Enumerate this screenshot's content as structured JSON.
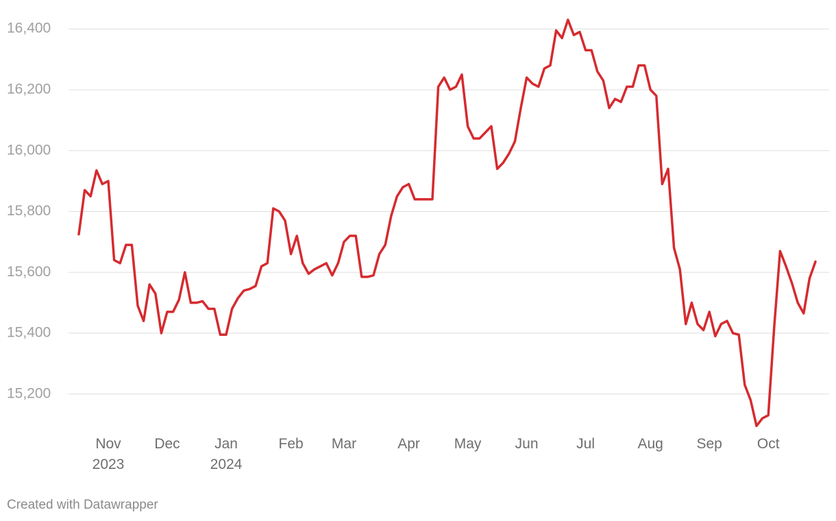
{
  "chart_data": {
    "type": "line",
    "credit": "Created with Datawrapper",
    "categories": [
      null,
      null,
      null,
      null,
      null,
      "Nov\n2023",
      null,
      null,
      null,
      null,
      null,
      null,
      null,
      null,
      null,
      "Dec",
      null,
      null,
      null,
      null,
      null,
      null,
      null,
      null,
      null,
      "Jan\n2024",
      null,
      null,
      null,
      null,
      null,
      null,
      null,
      null,
      null,
      null,
      "Feb",
      null,
      null,
      null,
      null,
      null,
      null,
      null,
      null,
      "Mar",
      null,
      null,
      null,
      null,
      null,
      null,
      null,
      null,
      null,
      null,
      "Apr",
      null,
      null,
      null,
      null,
      null,
      null,
      null,
      null,
      null,
      "May",
      null,
      null,
      null,
      null,
      null,
      null,
      null,
      null,
      null,
      "Jun",
      null,
      null,
      null,
      null,
      null,
      null,
      null,
      null,
      null,
      "Jul",
      null,
      null,
      null,
      null,
      null,
      null,
      null,
      null,
      null,
      null,
      "Aug",
      null,
      null,
      null,
      null,
      null,
      null,
      null,
      null,
      null,
      "Sep",
      null,
      null,
      null,
      null,
      null,
      null,
      null,
      null,
      null,
      "Oct",
      null,
      null,
      null,
      null,
      null,
      null,
      null,
      null
    ],
    "series": [
      {
        "color": "#d52b2f",
        "values": [
          15725,
          15870,
          15850,
          15935,
          15890,
          15900,
          15640,
          15630,
          15690,
          15690,
          15490,
          15440,
          15560,
          15530,
          15400,
          15470,
          15470,
          15510,
          15600,
          15500,
          15500,
          15505,
          15480,
          15480,
          15395,
          15395,
          15480,
          15515,
          15540,
          15545,
          15555,
          15620,
          15630,
          15810,
          15800,
          15770,
          15660,
          15720,
          15630,
          15595,
          15610,
          15620,
          15630,
          15590,
          15630,
          15700,
          15720,
          15720,
          15585,
          15585,
          15590,
          15660,
          15690,
          15785,
          15850,
          15880,
          15890,
          15840,
          15840,
          15840,
          15840,
          16210,
          16240,
          16200,
          16210,
          16250,
          16080,
          16040,
          16040,
          16060,
          16080,
          15940,
          15960,
          15990,
          16030,
          16140,
          16240,
          16220,
          16210,
          16270,
          16280,
          16395,
          16370,
          16430,
          16380,
          16390,
          16330,
          16330,
          16260,
          16230,
          16140,
          16170,
          16160,
          16210,
          16210,
          16280,
          16280,
          16200,
          16180,
          15890,
          15940,
          15680,
          15610,
          15430,
          15500,
          15430,
          15410,
          15470,
          15390,
          15430,
          15440,
          15400,
          15395,
          15230,
          15180,
          15095,
          15120,
          15130,
          15420,
          15670,
          15620,
          15565,
          15500,
          15465,
          15580,
          15635
        ]
      }
    ],
    "ylim": [
      15080,
      16450
    ],
    "yticks": [
      {
        "value": 15200,
        "label": "15,200"
      },
      {
        "value": 15400,
        "label": "15,400"
      },
      {
        "value": 15600,
        "label": "15,600"
      },
      {
        "value": 15800,
        "label": "15,800"
      },
      {
        "value": 16000,
        "label": "16,000"
      },
      {
        "value": 16200,
        "label": "16,200"
      },
      {
        "value": 16400,
        "label": "16,400"
      }
    ],
    "grid": true
  }
}
